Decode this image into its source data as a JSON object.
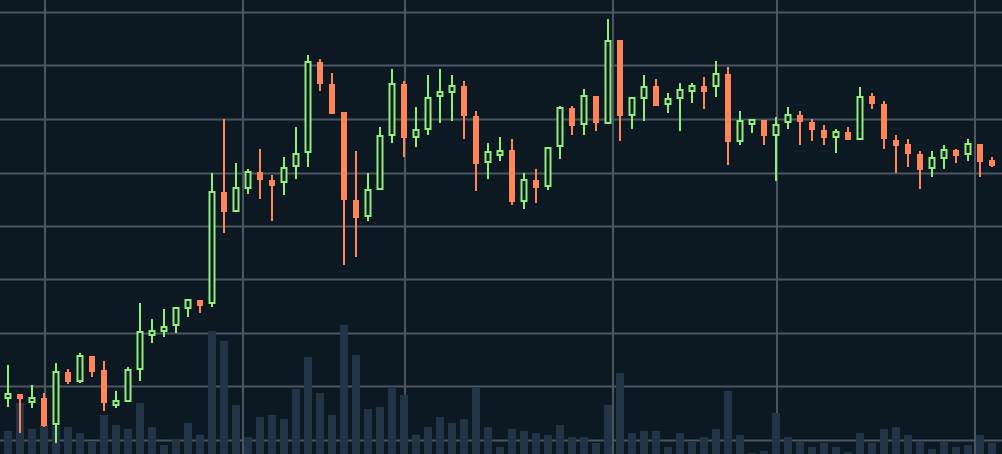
{
  "chart_data": {
    "type": "candlestick",
    "title": "",
    "xlabel": "",
    "ylabel": "",
    "grid": true,
    "legend": "none",
    "ylim": [
      0,
      454
    ],
    "colors": {
      "background": "#0c1822",
      "grid": "#4b5661",
      "up": "#8ef07a",
      "down": "#ff8559",
      "volume": "#243447"
    },
    "up_candle_style": "hollow",
    "down_candle_style": "filled",
    "ohlc": [
      [
        55,
        89,
        47,
        60
      ],
      [
        60,
        60,
        21,
        55
      ],
      [
        51,
        69,
        46,
        56
      ],
      [
        56,
        61,
        27,
        28
      ],
      [
        29,
        91,
        11,
        82
      ],
      [
        82,
        85,
        70,
        72
      ],
      [
        72,
        101,
        71,
        98
      ],
      [
        98,
        98,
        77,
        82
      ],
      [
        84,
        93,
        43,
        51
      ],
      [
        48,
        63,
        46,
        53
      ],
      [
        52,
        87,
        52,
        84
      ],
      [
        84,
        151,
        73,
        122
      ],
      [
        118,
        135,
        111,
        123
      ],
      [
        122,
        145,
        117,
        127
      ],
      [
        128,
        146,
        121,
        146
      ],
      [
        145,
        154,
        137,
        154
      ],
      [
        154,
        154,
        141,
        148
      ],
      [
        150,
        281,
        147,
        262
      ],
      [
        262,
        335,
        221,
        242
      ],
      [
        242,
        291,
        242,
        266
      ],
      [
        265,
        285,
        260,
        282
      ],
      [
        282,
        305,
        255,
        274
      ],
      [
        274,
        279,
        233,
        268
      ],
      [
        271,
        297,
        259,
        286
      ],
      [
        287,
        327,
        275,
        300
      ],
      [
        301,
        399,
        287,
        392
      ],
      [
        392,
        395,
        363,
        370
      ],
      [
        370,
        381,
        340,
        340
      ],
      [
        342,
        342,
        189,
        254
      ],
      [
        254,
        303,
        197,
        236
      ],
      [
        237,
        281,
        233,
        264
      ],
      [
        264,
        327,
        264,
        318
      ],
      [
        318,
        385,
        311,
        370
      ],
      [
        370,
        373,
        297,
        316
      ],
      [
        316,
        347,
        307,
        324
      ],
      [
        324,
        379,
        319,
        356
      ],
      [
        357,
        385,
        331,
        362
      ],
      [
        361,
        379,
        333,
        368
      ],
      [
        368,
        373,
        315,
        338
      ],
      [
        338,
        343,
        263,
        290
      ],
      [
        291,
        311,
        275,
        302
      ],
      [
        298,
        317,
        293,
        303
      ],
      [
        304,
        315,
        249,
        252
      ],
      [
        252,
        281,
        245,
        274
      ],
      [
        274,
        285,
        251,
        266
      ],
      [
        267,
        306,
        264,
        306
      ],
      [
        307,
        348,
        295,
        346
      ],
      [
        346,
        348,
        319,
        328
      ],
      [
        329,
        365,
        319,
        358
      ],
      [
        358,
        358,
        323,
        331
      ],
      [
        330,
        435,
        330,
        413
      ],
      [
        414,
        414,
        313,
        338
      ],
      [
        338,
        356,
        325,
        356
      ],
      [
        355,
        379,
        333,
        367
      ],
      [
        368,
        375,
        348,
        348
      ],
      [
        349,
        361,
        341,
        355
      ],
      [
        355,
        371,
        323,
        364
      ],
      [
        362,
        371,
        351,
        368
      ],
      [
        368,
        377,
        345,
        362
      ],
      [
        367,
        393,
        357,
        380
      ],
      [
        380,
        387,
        289,
        312
      ],
      [
        312,
        343,
        309,
        333
      ],
      [
        329,
        334,
        321,
        334
      ],
      [
        334,
        334,
        309,
        318
      ],
      [
        318,
        337,
        273,
        329
      ],
      [
        331,
        347,
        325,
        339
      ],
      [
        339,
        343,
        309,
        332
      ],
      [
        332,
        335,
        313,
        324
      ],
      [
        324,
        329,
        309,
        316
      ],
      [
        316,
        325,
        301,
        322
      ],
      [
        322,
        327,
        314,
        314
      ],
      [
        314,
        367,
        314,
        357
      ],
      [
        358,
        361,
        345,
        350
      ],
      [
        350,
        353,
        305,
        315
      ],
      [
        314,
        319,
        281,
        308
      ],
      [
        310,
        315,
        287,
        300
      ],
      [
        300,
        303,
        265,
        284
      ],
      [
        285,
        303,
        277,
        296
      ],
      [
        295,
        309,
        285,
        304
      ],
      [
        304,
        305,
        291,
        298
      ],
      [
        299,
        315,
        293,
        310
      ],
      [
        310,
        310,
        277,
        292
      ],
      [
        294,
        297,
        287,
        288
      ]
    ],
    "volume": [
      23,
      51,
      25,
      29,
      28,
      27,
      21,
      13,
      39,
      29,
      25,
      51,
      27,
      9,
      15,
      31,
      19,
      123,
      113,
      49,
      17,
      37,
      39,
      35,
      65,
      97,
      61,
      39,
      129,
      99,
      45,
      47,
      67,
      59,
      19,
      27,
      37,
      31,
      35,
      67,
      27,
      7,
      25,
      23,
      21,
      19,
      29,
      17,
      17,
      11,
      49,
      81,
      21,
      23,
      23,
      7,
      21,
      13,
      17,
      25,
      63,
      19,
      1,
      3,
      41,
      17,
      13,
      7,
      11,
      7,
      2,
      21,
      11,
      25,
      27,
      19,
      13,
      5,
      13,
      7,
      9,
      19,
      11
    ]
  }
}
